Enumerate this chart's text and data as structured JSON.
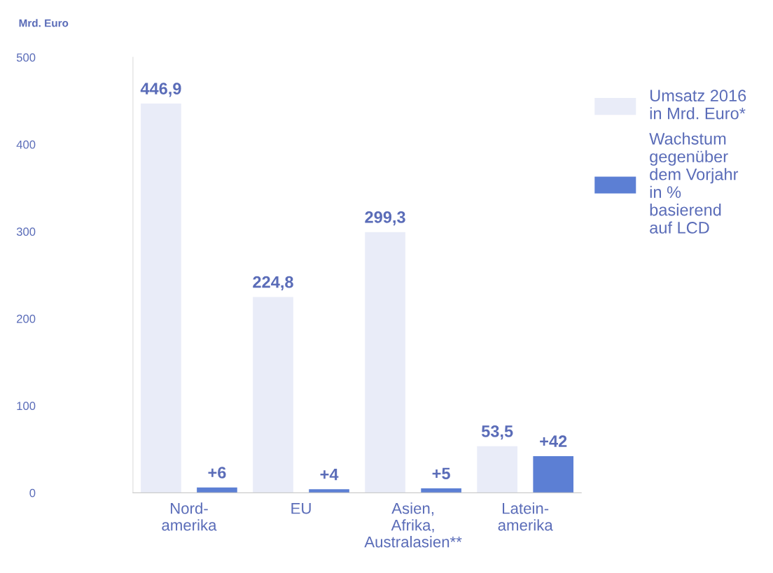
{
  "chart_data": {
    "type": "bar",
    "ylabel": "Mrd. Euro",
    "categories": [
      "Nord-\namerika",
      "EU",
      "Asien,\nAfrika,\nAustralasien**",
      "Latein-\namerika"
    ],
    "series": [
      {
        "name": "Umsatz 2016\nin Mrd. Euro*",
        "color": "#e9ecf8",
        "values": [
          446.9,
          224.8,
          299.3,
          53.5
        ],
        "value_labels": [
          "446,9",
          "224,8",
          "299,3",
          "53,5"
        ]
      },
      {
        "name": "Wachstum\ngegenüber\ndem Vorjahr\nin %\nbasierend\nauf LCD",
        "color": "#5c7fd4",
        "values": [
          6,
          4,
          5,
          42
        ],
        "value_labels": [
          "+6",
          "+4",
          "+5",
          "+42"
        ]
      }
    ],
    "ylim": [
      0,
      500
    ],
    "yticks": [
      0,
      100,
      200,
      300,
      400,
      500
    ],
    "grid": false,
    "legend": "right"
  }
}
